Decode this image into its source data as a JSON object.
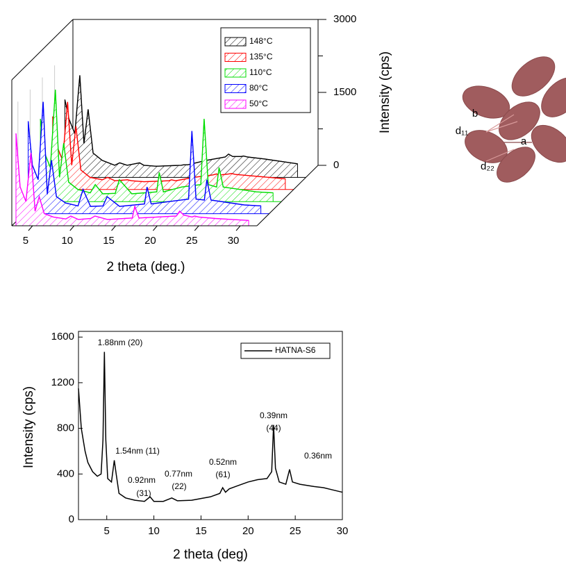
{
  "chart_data": [
    {
      "type": "waterfall",
      "x_label": "2 theta (deg.)",
      "y_label": "Intensity (cps)",
      "x": [
        3,
        3.5,
        4.2,
        4.8,
        5.3,
        5.8,
        6.4,
        7.5,
        9,
        9.6,
        10.5,
        12,
        12.5,
        14,
        17,
        17.3,
        17.8,
        20,
        22.3,
        22.7,
        23.2,
        24.2,
        24.5,
        25,
        27,
        29,
        31
      ],
      "series": [
        {
          "name": "148°C",
          "color": "#000000",
          "values": [
            1600,
            1200,
            900,
            2100,
            700,
            1400,
            500,
            350,
            250,
            300,
            250,
            300,
            250,
            230,
            250,
            260,
            260,
            350,
            420,
            480,
            430,
            430,
            440,
            420,
            380,
            330,
            280
          ]
        },
        {
          "name": "135°C",
          "color": "#ff0000",
          "values": [
            1500,
            900,
            600,
            1800,
            500,
            1300,
            400,
            250,
            200,
            250,
            180,
            200,
            180,
            160,
            180,
            200,
            180,
            250,
            300,
            320,
            300,
            320,
            330,
            310,
            280,
            250,
            220
          ]
        },
        {
          "name": "110°C",
          "color": "#00dd00",
          "values": [
            1700,
            1000,
            700,
            2300,
            500,
            1200,
            400,
            250,
            180,
            350,
            160,
            170,
            450,
            160,
            200,
            600,
            200,
            300,
            350,
            1700,
            350,
            300,
            700,
            300,
            250,
            200,
            180
          ]
        },
        {
          "name": "80°C",
          "color": "#0000ff",
          "values": [
            1900,
            1000,
            700,
            2300,
            400,
            1100,
            350,
            220,
            160,
            500,
            150,
            160,
            350,
            150,
            200,
            550,
            200,
            250,
            300,
            1700,
            300,
            280,
            700,
            280,
            230,
            180,
            160
          ]
        },
        {
          "name": "50°C",
          "color": "#ff00ff",
          "values": [
            1900,
            800,
            500,
            1500,
            300,
            600,
            250,
            180,
            140,
            200,
            130,
            150,
            200,
            130,
            160,
            400,
            160,
            180,
            200,
            300,
            220,
            180,
            200,
            180,
            150,
            130,
            110
          ]
        }
      ],
      "xlim": [
        2.5,
        32
      ],
      "xticks": [
        5,
        10,
        15,
        20,
        25,
        30
      ],
      "ylim": [
        0,
        3000
      ],
      "yticks": [
        0,
        1500,
        3000
      ],
      "yminorticks": [
        750,
        2250
      ]
    },
    {
      "type": "line",
      "x_label": "2 theta (deg)",
      "y_label": "Intensity (cps)",
      "x": [
        2.0,
        2.3,
        2.7,
        3.0,
        3.5,
        4.0,
        4.4,
        4.6,
        4.75,
        4.9,
        5.1,
        5.5,
        5.8,
        6.0,
        6.3,
        7,
        8,
        9,
        9.6,
        10,
        11,
        11.9,
        12.5,
        14,
        15,
        16,
        17,
        17.3,
        17.6,
        18,
        19,
        20,
        21,
        22,
        22.5,
        22.7,
        22.9,
        23.3,
        24,
        24.4,
        24.7,
        25.5,
        27,
        28,
        29,
        30
      ],
      "series": [
        {
          "name": "HATNA-S6",
          "color": "#000000",
          "values": [
            1150,
            800,
            600,
            500,
            420,
            380,
            400,
            700,
            1470,
            700,
            360,
            330,
            520,
            400,
            230,
            190,
            170,
            160,
            200,
            160,
            160,
            190,
            165,
            170,
            185,
            200,
            230,
            280,
            240,
            270,
            300,
            330,
            350,
            360,
            420,
            830,
            450,
            330,
            310,
            440,
            330,
            310,
            290,
            280,
            260,
            240
          ]
        }
      ],
      "xlim": [
        2,
        30
      ],
      "xticks": [
        5,
        10,
        15,
        20,
        25,
        30
      ],
      "ylim": [
        0,
        1650
      ],
      "yticks": [
        0,
        400,
        800,
        1200,
        1600
      ],
      "annotations": [
        "1.88nm (20)",
        "1.54nm (11)",
        "0.92nm",
        "(31)",
        "0.77nm",
        "(22)",
        "0.52nm",
        "(61)",
        "0.39nm",
        "(44)",
        "0.36nm"
      ]
    }
  ],
  "diagram": {
    "labels": [
      "b",
      "d₁₁",
      "a",
      "d₂₂"
    ]
  }
}
